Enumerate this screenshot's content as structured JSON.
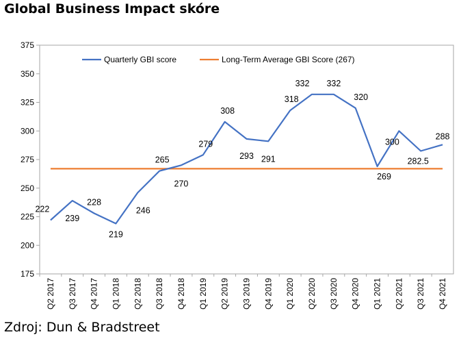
{
  "header": {
    "title": "Global Business Impact skóre"
  },
  "footer": {
    "source": "Zdroj: Dun & Bradstreet"
  },
  "chart_data": {
    "type": "line",
    "categories": [
      "Q2 2017",
      "Q3 2017",
      "Q4 2017",
      "Q1 2018",
      "Q2 2018",
      "Q3 2018",
      "Q4 2018",
      "Q1 2019",
      "Q2 2019",
      "Q3 2019",
      "Q4 2019",
      "Q1 2020",
      "Q2 2020",
      "Q3 2020",
      "Q4 2020",
      "Q1 2021",
      "Q2 2021",
      "Q3 2021",
      "Q4 2021"
    ],
    "series": [
      {
        "name": "Quarterly GBI score",
        "color": "#4472c4",
        "values": [
          222,
          239,
          228,
          219,
          246,
          265,
          270,
          279,
          308,
          293,
          291,
          318,
          332,
          332,
          320,
          269,
          300,
          282.5,
          288
        ],
        "labels": [
          "222",
          "239",
          "228",
          "219",
          "246",
          "265",
          "270",
          "279",
          "308",
          "293",
          "291",
          "318",
          "332",
          "332",
          "320",
          "269",
          "300",
          "282.5",
          "288"
        ]
      },
      {
        "name": "Long-Term Average GBI Score (267)",
        "color": "#ed7d31",
        "constant": 267
      }
    ],
    "yticks": [
      "175",
      "200",
      "225",
      "250",
      "275",
      "300",
      "325",
      "350",
      "375"
    ],
    "ylim": [
      175,
      375
    ],
    "grid": false,
    "legend": "top-left inside plot"
  }
}
